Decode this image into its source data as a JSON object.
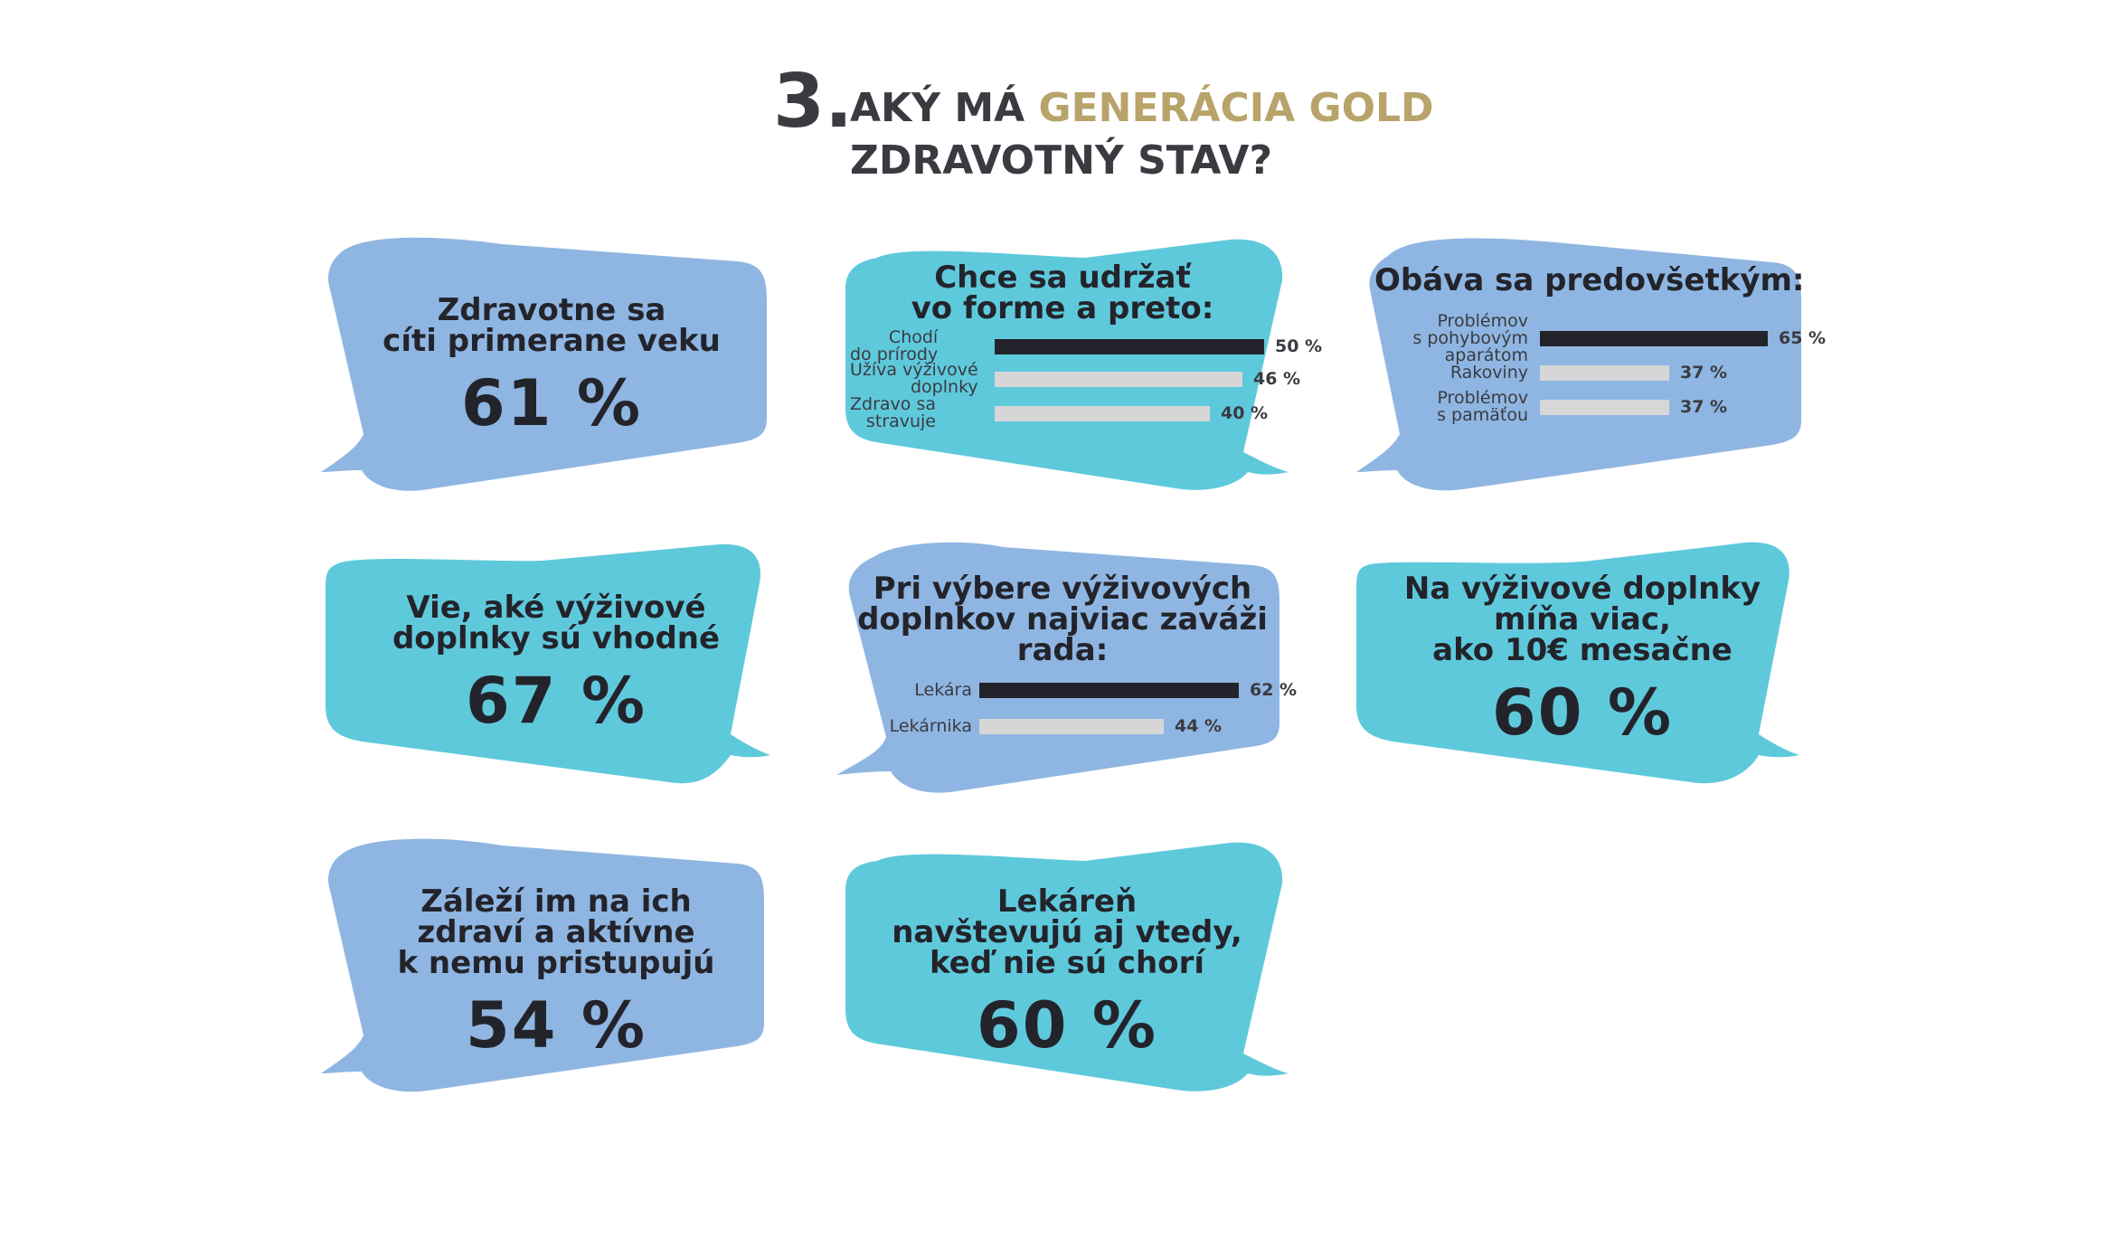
{
  "title": {
    "number": "3.",
    "line1_pre": "AKÝ MÁ ",
    "line1_gold": "GENERÁCIA GOLD",
    "line2": "ZDRAVOTNÝ STAV?"
  },
  "colors": {
    "blue": "#8fb6e2",
    "cyan": "#5fc9dc",
    "gold": "#b8a36a",
    "bar_dark": "#23242b",
    "bar_light": "#d6d6d6",
    "text": "#23242b"
  },
  "cards": [
    {
      "id": "c1",
      "caption": [
        "Zdravotne sa",
        "cíti primerane veku"
      ],
      "value": "61 %"
    },
    {
      "id": "c4",
      "caption": [
        "Vie, aké výživové",
        "doplnky sú vhodné"
      ],
      "value": "67 %"
    },
    {
      "id": "c6",
      "caption": [
        "Na výživové  doplnky",
        "míňa viac,",
        "ako 10€ mesačne"
      ],
      "value": "60 %"
    },
    {
      "id": "c7",
      "caption": [
        "Záleží im na ich",
        "zdraví a aktívne",
        "k nemu pristupujú"
      ],
      "value": "54 %"
    },
    {
      "id": "c8",
      "caption": [
        "Lekáreň",
        "navštevujú aj vtedy,",
        "keď nie sú chorí"
      ],
      "value": "60 %"
    }
  ],
  "chart_data": [
    {
      "type": "bar",
      "title": "Chce sa udržať vo forme a preto:",
      "title_lines": [
        "Chce sa udržať",
        "vo forme a preto:"
      ],
      "categories": [
        "Chodí do prírody",
        "Užíva výživové doplnky",
        "Zdravo sa stravuje"
      ],
      "category_lines": [
        [
          "Chodí",
          "do prírody"
        ],
        [
          "Užíva výživové",
          "doplnky"
        ],
        [
          "Zdravo sa",
          "stravuje"
        ]
      ],
      "values": [
        50,
        46,
        40
      ],
      "value_labels": [
        "50 %",
        "46 %",
        "40 %"
      ],
      "highlight": [
        true,
        false,
        false
      ],
      "orientation": "horizontal"
    },
    {
      "type": "bar",
      "title": "Obáva sa predovšetkým:",
      "title_lines": [
        "Obáva sa predovšetkým:"
      ],
      "categories": [
        "Problémov s pohybovým aparátom",
        "Rakoviny",
        "Problémov s pamäťou"
      ],
      "category_lines": [
        [
          "Problémov",
          "s pohybovým",
          "aparátom"
        ],
        [
          "Rakoviny"
        ],
        [
          "Problémov",
          "s pamäťou"
        ]
      ],
      "values": [
        65,
        37,
        37
      ],
      "value_labels": [
        "65 %",
        "37 %",
        "37 %"
      ],
      "highlight": [
        true,
        false,
        false
      ],
      "orientation": "horizontal"
    },
    {
      "type": "bar",
      "title": "Pri výbere výživových doplnkov najviac zaváži rada:",
      "title_lines": [
        "Pri výbere výživových",
        "doplnkov najviac zaváži",
        "rada:"
      ],
      "categories": [
        "Lekára",
        "Lekárnika"
      ],
      "category_lines": [
        [
          "Lekára"
        ],
        [
          "Lekárnika"
        ]
      ],
      "values": [
        62,
        44
      ],
      "value_labels": [
        "62 %",
        "44 %"
      ],
      "highlight": [
        true,
        false
      ],
      "orientation": "horizontal"
    }
  ]
}
